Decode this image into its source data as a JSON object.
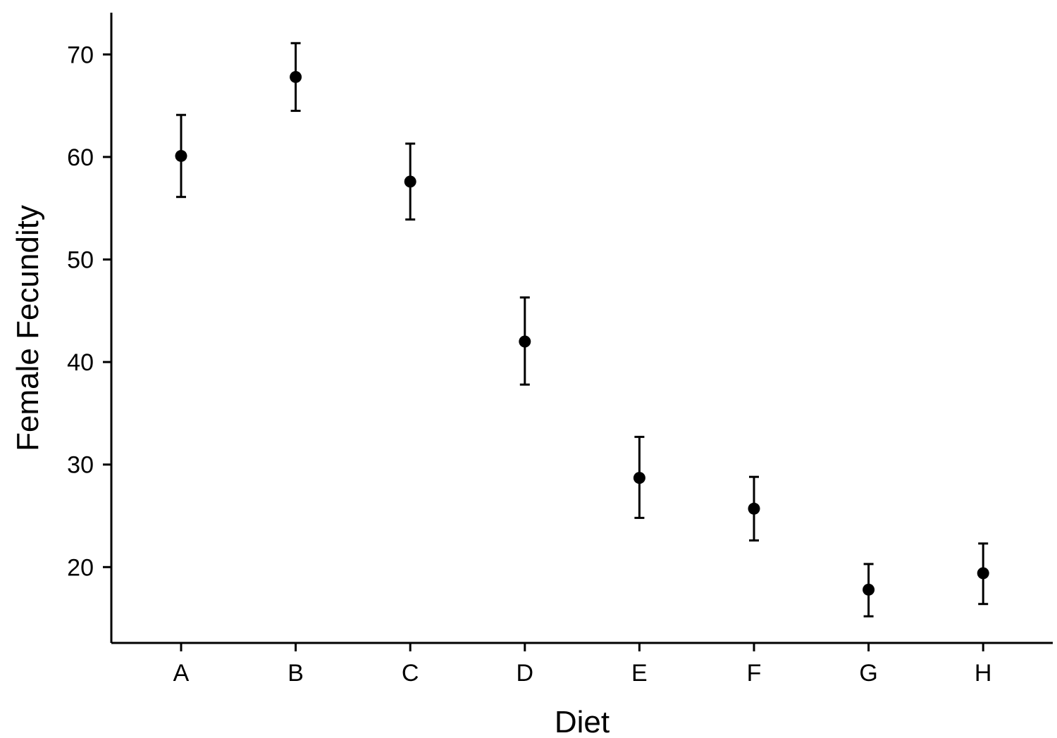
{
  "chart_data": {
    "type": "scatter",
    "title": "",
    "xlabel": "Diet",
    "ylabel": "Female Fecundity",
    "categories": [
      "A",
      "B",
      "C",
      "D",
      "E",
      "F",
      "G",
      "H"
    ],
    "series": [
      {
        "values": [
          60.1,
          67.8,
          57.6,
          42.0,
          28.7,
          25.7,
          17.8,
          19.4
        ],
        "error_low": [
          56.1,
          64.5,
          53.9,
          37.8,
          24.8,
          22.6,
          15.2,
          16.4
        ],
        "error_high": [
          64.1,
          71.1,
          61.3,
          46.3,
          32.7,
          28.8,
          20.3,
          22.3
        ]
      }
    ],
    "yticks": [
      "20",
      "30",
      "40",
      "50",
      "60",
      "70"
    ],
    "ylim": [
      12.5,
      74
    ],
    "grid": false,
    "legend": "none",
    "colors": {
      "mark": "#000000",
      "axis": "#000000"
    }
  }
}
